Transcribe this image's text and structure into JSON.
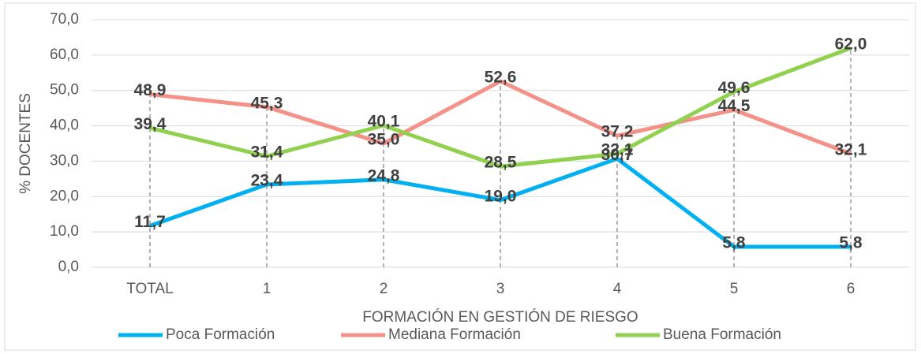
{
  "chart_data": {
    "type": "line",
    "x_label": "FORMACIÓN EN GESTIÓN DE RIESGO",
    "y_label": "% DOCENTES",
    "categories": [
      "TOTAL",
      "1",
      "2",
      "3",
      "4",
      "5",
      "6"
    ],
    "series": [
      {
        "name": "Poca Formación",
        "color": "#00b0f0",
        "values": [
          11.7,
          23.4,
          24.8,
          19.0,
          30.7,
          5.8,
          5.8
        ],
        "value_labels": [
          "11,7",
          "23,4",
          "24,8",
          "19,0",
          "30,7",
          "5,8",
          "5,8"
        ]
      },
      {
        "name": "Mediana Formación",
        "color": "#f4928a",
        "values": [
          48.9,
          45.3,
          35.0,
          52.6,
          37.2,
          44.5,
          32.1
        ],
        "value_labels": [
          "48,9",
          "45,3",
          "35,0",
          "52,6",
          "37,2",
          "44,5",
          "32,1"
        ]
      },
      {
        "name": "Buena Formación",
        "color": "#92d050",
        "values": [
          39.4,
          31.4,
          40.1,
          28.5,
          32.1,
          49.6,
          62.0
        ],
        "value_labels": [
          "39,4",
          "31,4",
          "40,1",
          "28,5",
          "32,1",
          "49,6",
          "62,0"
        ]
      }
    ],
    "ylim": [
      0,
      70
    ],
    "yticks": [
      {
        "value": 0,
        "label": "0,0"
      },
      {
        "value": 10,
        "label": "10,0"
      },
      {
        "value": 20,
        "label": "20,0"
      },
      {
        "value": 30,
        "label": "30,0"
      },
      {
        "value": 40,
        "label": "40,0"
      },
      {
        "value": 50,
        "label": "50,0"
      },
      {
        "value": 60,
        "label": "60,0"
      },
      {
        "value": 70,
        "label": "70,0"
      }
    ],
    "grid": true,
    "legend": "bottom"
  }
}
